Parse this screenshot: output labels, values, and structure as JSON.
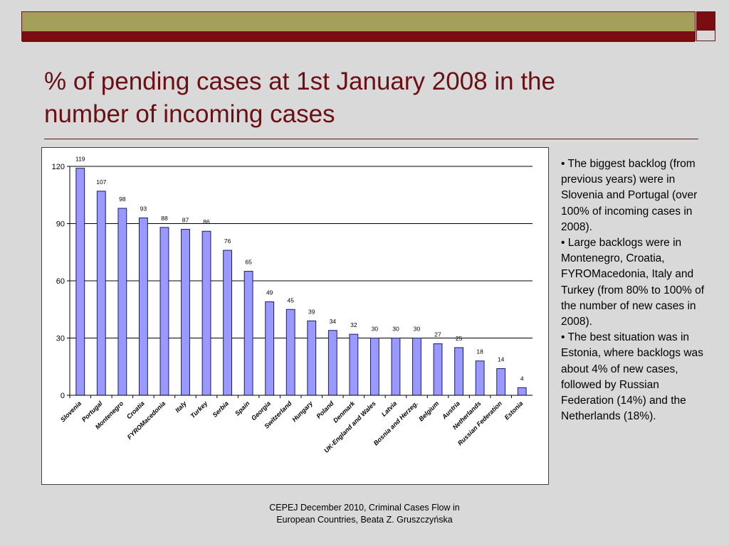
{
  "slide": {
    "title_line1": "% of pending cases at 1st January 2008 in the",
    "title_line2": "number of incoming cases",
    "notes": [
      "• The biggest backlog (from previous years) were in Slovenia and Portugal (over 100% of incoming cases in 2008).",
      "• Large backlogs were in Montenegro, Croatia, FYROMacedonia, Italy and Turkey (from 80% to 100% of the number of new cases in 2008).",
      "• The best situation was in Estonia, where backlogs was about 4% of new cases, followed by Russian Federation (14%) and the Netherlands (18%)."
    ],
    "footer_line1": "CEPEJ December 2010, Criminal Cases Flow in",
    "footer_line2": "European Countries, Beata Z. Gruszczyńska"
  },
  "colors": {
    "title": "#6b0f14",
    "bar_fill": "#9999ff",
    "bar_stroke": "#1a1a6e",
    "band_olive": "#a4a05c",
    "band_maroon": "#7a0c12"
  },
  "chart_data": {
    "type": "bar",
    "categories": [
      "Slovenia",
      "Portugal",
      "Montenegro",
      "Croatia",
      "FYROMacedonia",
      "Italy",
      "Turkey",
      "Serbia",
      "Spain",
      "Georgia",
      "Switzerland",
      "Hungary",
      "Poland",
      "Denmark",
      "UK-England and Wales",
      "Latvia",
      "Bosnia and Herzeg.",
      "Belgium",
      "Austria",
      "Netherlands",
      "Russian Federation",
      "Estonia"
    ],
    "values": [
      119,
      107,
      98,
      93,
      88,
      87,
      86,
      76,
      65,
      49,
      45,
      39,
      34,
      32,
      30,
      30,
      30,
      27,
      25,
      18,
      14,
      4
    ],
    "ylim": [
      0,
      120
    ],
    "yticks": [
      0,
      30,
      60,
      90,
      120
    ],
    "grid": true
  }
}
